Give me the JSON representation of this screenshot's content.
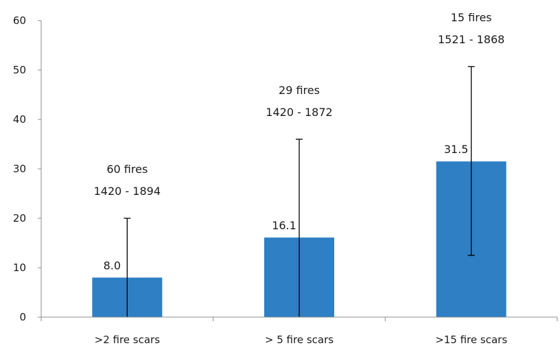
{
  "chart_data": {
    "type": "bar",
    "categories": [
      ">2 fire scars",
      "> 5 fire scars",
      ">15 fire scars"
    ],
    "values": [
      8.0,
      16.1,
      31.5
    ],
    "value_labels": [
      "8.0",
      "16.1",
      "31.5"
    ],
    "error_bars": [
      {
        "low": 0,
        "high": 20
      },
      {
        "low": 0,
        "high": 36
      },
      {
        "low": 12.5,
        "high": 50.7
      }
    ],
    "annotations": [
      {
        "fires": "60 fires",
        "range": "1420 - 1894"
      },
      {
        "fires": "29 fires",
        "range": "1420 - 1872"
      },
      {
        "fires": "15 fires",
        "range": "1521 - 1868"
      }
    ],
    "y_ticks": [
      "0",
      "10",
      "20",
      "30",
      "40",
      "50",
      "60"
    ],
    "ylim": [
      0,
      60
    ],
    "title": "",
    "xlabel": "",
    "ylabel": "",
    "grid": false,
    "legend": "none",
    "bar_color": "#2e7fc4",
    "axis_color": "#8c8c8c"
  }
}
